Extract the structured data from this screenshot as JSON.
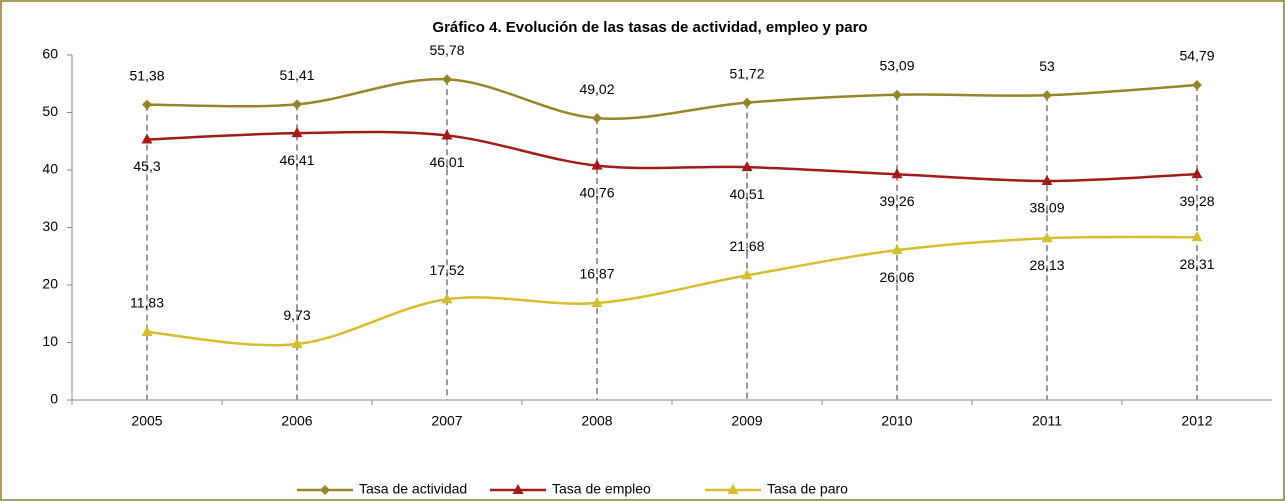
{
  "chart_data": {
    "type": "line",
    "title": "Gráfico 4. Evolución de las tasas de actividad, empleo y paro",
    "categories": [
      "2005",
      "2006",
      "2007",
      "2008",
      "2009",
      "2010",
      "2011",
      "2012"
    ],
    "series": [
      {
        "name": "Tasa de actividad",
        "color": "#97852a",
        "marker": "diamond",
        "values": [
          51.38,
          51.41,
          55.78,
          49.02,
          51.72,
          53.09,
          53,
          54.79
        ],
        "value_labels": [
          "51,38",
          "51,41",
          "55,78",
          "49,02",
          "51,72",
          "53,09",
          "53",
          "54,79"
        ]
      },
      {
        "name": "Tasa de empleo",
        "color": "#a31a1a",
        "marker": "triangle",
        "values": [
          45.3,
          46.41,
          46.01,
          40.76,
          40.51,
          39.26,
          38.09,
          39.28
        ],
        "value_labels": [
          "45,3",
          "46,41",
          "46,01",
          "40,76",
          "40,51",
          "39,26",
          "38,09",
          "39,28"
        ]
      },
      {
        "name": "Tasa de paro",
        "color": "#d4bd2e",
        "marker": "triangle",
        "values": [
          11.83,
          9.73,
          17.52,
          16.87,
          21.68,
          26.06,
          28.13,
          28.31
        ],
        "value_labels": [
          "11,83",
          "9,73",
          "17,52",
          "16,87",
          "21,68",
          "26,06",
          "28,13",
          "28,31"
        ]
      }
    ],
    "ylim": [
      0,
      60
    ],
    "yticks": [
      0,
      10,
      20,
      30,
      40,
      50,
      60
    ],
    "drop_lines": true
  }
}
